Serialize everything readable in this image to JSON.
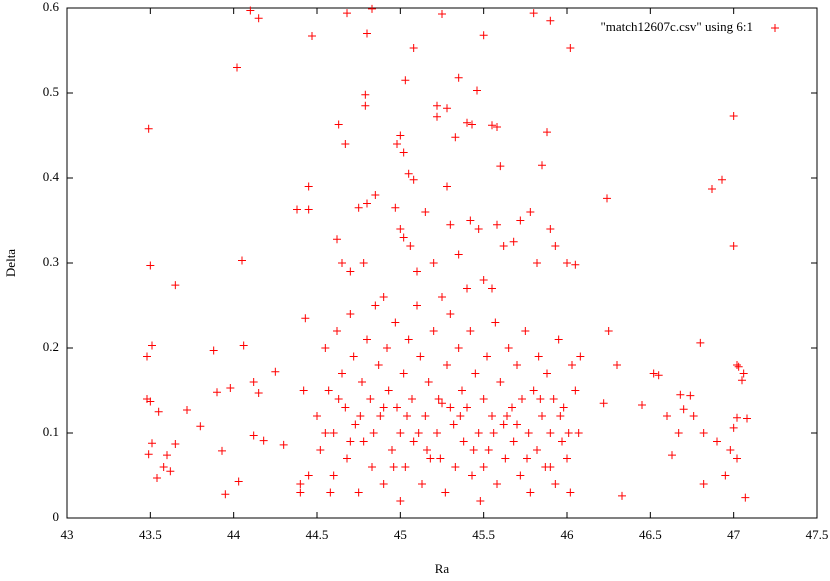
{
  "chart_data": {
    "type": "scatter",
    "x_label": "Ra",
    "y_label": "Delta",
    "xlim": [
      43,
      47.5
    ],
    "ylim": [
      0,
      0.6
    ],
    "xticks": [
      43,
      43.5,
      44,
      44.5,
      45,
      45.5,
      46,
      46.5,
      47,
      47.5
    ],
    "yticks": [
      0,
      0.1,
      0.2,
      0.3,
      0.4,
      0.5,
      0.6
    ],
    "grid": false,
    "legend_position": "top-right",
    "series": [
      {
        "name": "\"match12607c.csv\" using 6:1",
        "color": "#ff0000",
        "x": [
          43.49,
          43.5,
          43.65,
          43.48,
          43.51,
          43.48,
          43.5,
          43.55,
          43.49,
          43.51,
          43.54,
          43.58,
          43.62,
          43.65,
          43.6,
          43.72,
          43.8,
          43.88,
          43.9,
          43.98,
          43.93,
          43.95,
          44.03,
          44.02,
          44.05,
          44.06,
          44.1,
          44.15,
          44.12,
          44.15,
          44.12,
          44.18,
          44.25,
          44.3,
          44.38,
          44.45,
          44.45,
          44.47,
          44.43,
          44.42,
          44.4,
          44.4,
          44.45,
          44.63,
          44.67,
          44.68,
          44.8,
          44.79,
          44.79,
          44.83,
          45.08,
          45.03,
          45.25,
          45.22,
          45.22,
          45.28,
          45.35,
          45.43,
          45.46,
          45.5,
          45.55,
          45.58,
          45.8,
          45.9,
          46.02,
          45.88,
          45.85,
          45.6,
          46.0,
          46.05,
          46.24,
          46.22,
          46.25,
          46.3,
          46.33,
          46.45,
          46.52,
          46.55,
          46.6,
          46.63,
          46.67,
          46.68,
          46.7,
          46.74,
          46.76,
          46.8,
          46.82,
          46.82,
          46.87,
          46.93,
          46.9,
          46.95,
          46.98,
          47.0,
          47.0,
          47.02,
          47.03,
          47.0,
          47.02,
          47.05,
          47.06,
          47.02,
          47.07,
          47.08,
          44.62,
          44.7,
          44.75,
          44.8,
          44.85,
          44.78,
          44.97,
          44.98,
          45.0,
          45.02,
          45.05,
          45.08,
          45.0,
          45.02,
          45.06,
          45.1,
          45.15,
          45.2,
          45.28,
          45.3,
          45.33,
          45.35,
          45.4,
          45.42,
          45.47,
          45.5,
          45.58,
          45.62,
          45.68,
          45.72,
          45.78,
          45.82,
          45.9,
          45.93,
          44.65,
          44.9,
          45.25,
          45.4,
          45.55,
          44.5,
          44.52,
          44.55,
          44.57,
          44.6,
          44.6,
          44.62,
          44.65,
          44.67,
          44.68,
          44.7,
          44.72,
          44.73,
          44.75,
          44.77,
          44.78,
          44.8,
          44.82,
          44.83,
          44.85,
          44.87,
          44.88,
          44.9,
          44.92,
          44.93,
          44.95,
          44.97,
          44.98,
          45.0,
          45.0,
          45.02,
          45.03,
          45.05,
          45.07,
          45.08,
          45.1,
          45.12,
          45.13,
          45.15,
          45.17,
          45.18,
          45.2,
          45.22,
          45.23,
          45.25,
          45.27,
          45.28,
          45.3,
          45.32,
          45.33,
          45.35,
          45.37,
          45.38,
          45.4,
          45.42,
          45.43,
          45.45,
          45.47,
          45.48,
          45.5,
          45.52,
          45.53,
          45.55,
          45.57,
          45.58,
          45.6,
          45.62,
          45.63,
          45.65,
          45.67,
          45.68,
          45.7,
          45.72,
          45.73,
          45.75,
          45.77,
          45.78,
          45.8,
          45.82,
          45.83,
          45.85,
          45.87,
          45.88,
          45.9,
          45.92,
          45.93,
          45.95,
          45.97,
          45.98,
          46.0,
          46.02,
          46.03,
          46.05,
          46.07,
          46.08,
          44.55,
          44.58,
          44.63,
          44.7,
          44.76,
          44.84,
          44.9,
          44.96,
          45.04,
          45.11,
          45.16,
          45.24,
          45.3,
          45.36,
          45.44,
          45.5,
          45.56,
          45.64,
          45.7,
          45.76,
          45.84,
          45.9,
          45.96,
          46.01
        ],
        "values": [
          0.458,
          0.297,
          0.274,
          0.19,
          0.203,
          0.14,
          0.137,
          0.125,
          0.075,
          0.088,
          0.047,
          0.06,
          0.055,
          0.087,
          0.074,
          0.127,
          0.108,
          0.197,
          0.148,
          0.153,
          0.079,
          0.028,
          0.043,
          0.53,
          0.303,
          0.203,
          0.597,
          0.588,
          0.16,
          0.147,
          0.097,
          0.091,
          0.172,
          0.086,
          0.363,
          0.39,
          0.363,
          0.567,
          0.235,
          0.15,
          0.04,
          0.03,
          0.05,
          0.463,
          0.44,
          0.594,
          0.57,
          0.498,
          0.485,
          0.599,
          0.553,
          0.515,
          0.593,
          0.472,
          0.485,
          0.482,
          0.518,
          0.463,
          0.503,
          0.568,
          0.462,
          0.46,
          0.594,
          0.585,
          0.553,
          0.454,
          0.415,
          0.414,
          0.3,
          0.298,
          0.376,
          0.135,
          0.22,
          0.18,
          0.026,
          0.133,
          0.17,
          0.168,
          0.12,
          0.074,
          0.1,
          0.145,
          0.128,
          0.144,
          0.12,
          0.206,
          0.1,
          0.04,
          0.387,
          0.398,
          0.09,
          0.05,
          0.08,
          0.473,
          0.32,
          0.18,
          0.178,
          0.106,
          0.118,
          0.162,
          0.17,
          0.07,
          0.024,
          0.117,
          0.328,
          0.29,
          0.365,
          0.37,
          0.38,
          0.3,
          0.365,
          0.44,
          0.45,
          0.43,
          0.405,
          0.398,
          0.34,
          0.33,
          0.32,
          0.29,
          0.36,
          0.3,
          0.39,
          0.345,
          0.448,
          0.31,
          0.465,
          0.35,
          0.34,
          0.28,
          0.345,
          0.32,
          0.325,
          0.35,
          0.36,
          0.3,
          0.34,
          0.32,
          0.3,
          0.26,
          0.26,
          0.27,
          0.27,
          0.12,
          0.08,
          0.2,
          0.15,
          0.1,
          0.05,
          0.22,
          0.17,
          0.13,
          0.07,
          0.24,
          0.19,
          0.11,
          0.03,
          0.16,
          0.09,
          0.21,
          0.14,
          0.06,
          0.25,
          0.18,
          0.12,
          0.04,
          0.2,
          0.15,
          0.08,
          0.23,
          0.13,
          0.1,
          0.02,
          0.17,
          0.06,
          0.21,
          0.14,
          0.09,
          0.25,
          0.19,
          0.04,
          0.12,
          0.16,
          0.07,
          0.22,
          0.1,
          0.14,
          0.135,
          0.03,
          0.18,
          0.24,
          0.11,
          0.06,
          0.2,
          0.15,
          0.09,
          0.13,
          0.22,
          0.05,
          0.17,
          0.1,
          0.02,
          0.14,
          0.19,
          0.08,
          0.12,
          0.23,
          0.04,
          0.16,
          0.11,
          0.07,
          0.2,
          0.13,
          0.09,
          0.18,
          0.05,
          0.14,
          0.22,
          0.1,
          0.03,
          0.15,
          0.08,
          0.19,
          0.12,
          0.06,
          0.17,
          0.1,
          0.14,
          0.04,
          0.21,
          0.09,
          0.13,
          0.07,
          0.03,
          0.18,
          0.15,
          0.1,
          0.19,
          0.1,
          0.03,
          0.14,
          0.09,
          0.12,
          0.1,
          0.13,
          0.06,
          0.12,
          0.1,
          0.08,
          0.07,
          0.13,
          0.12,
          0.08,
          0.06,
          0.1,
          0.12,
          0.11,
          0.07,
          0.14,
          0.06,
          0.12,
          0.1
        ]
      }
    ]
  }
}
